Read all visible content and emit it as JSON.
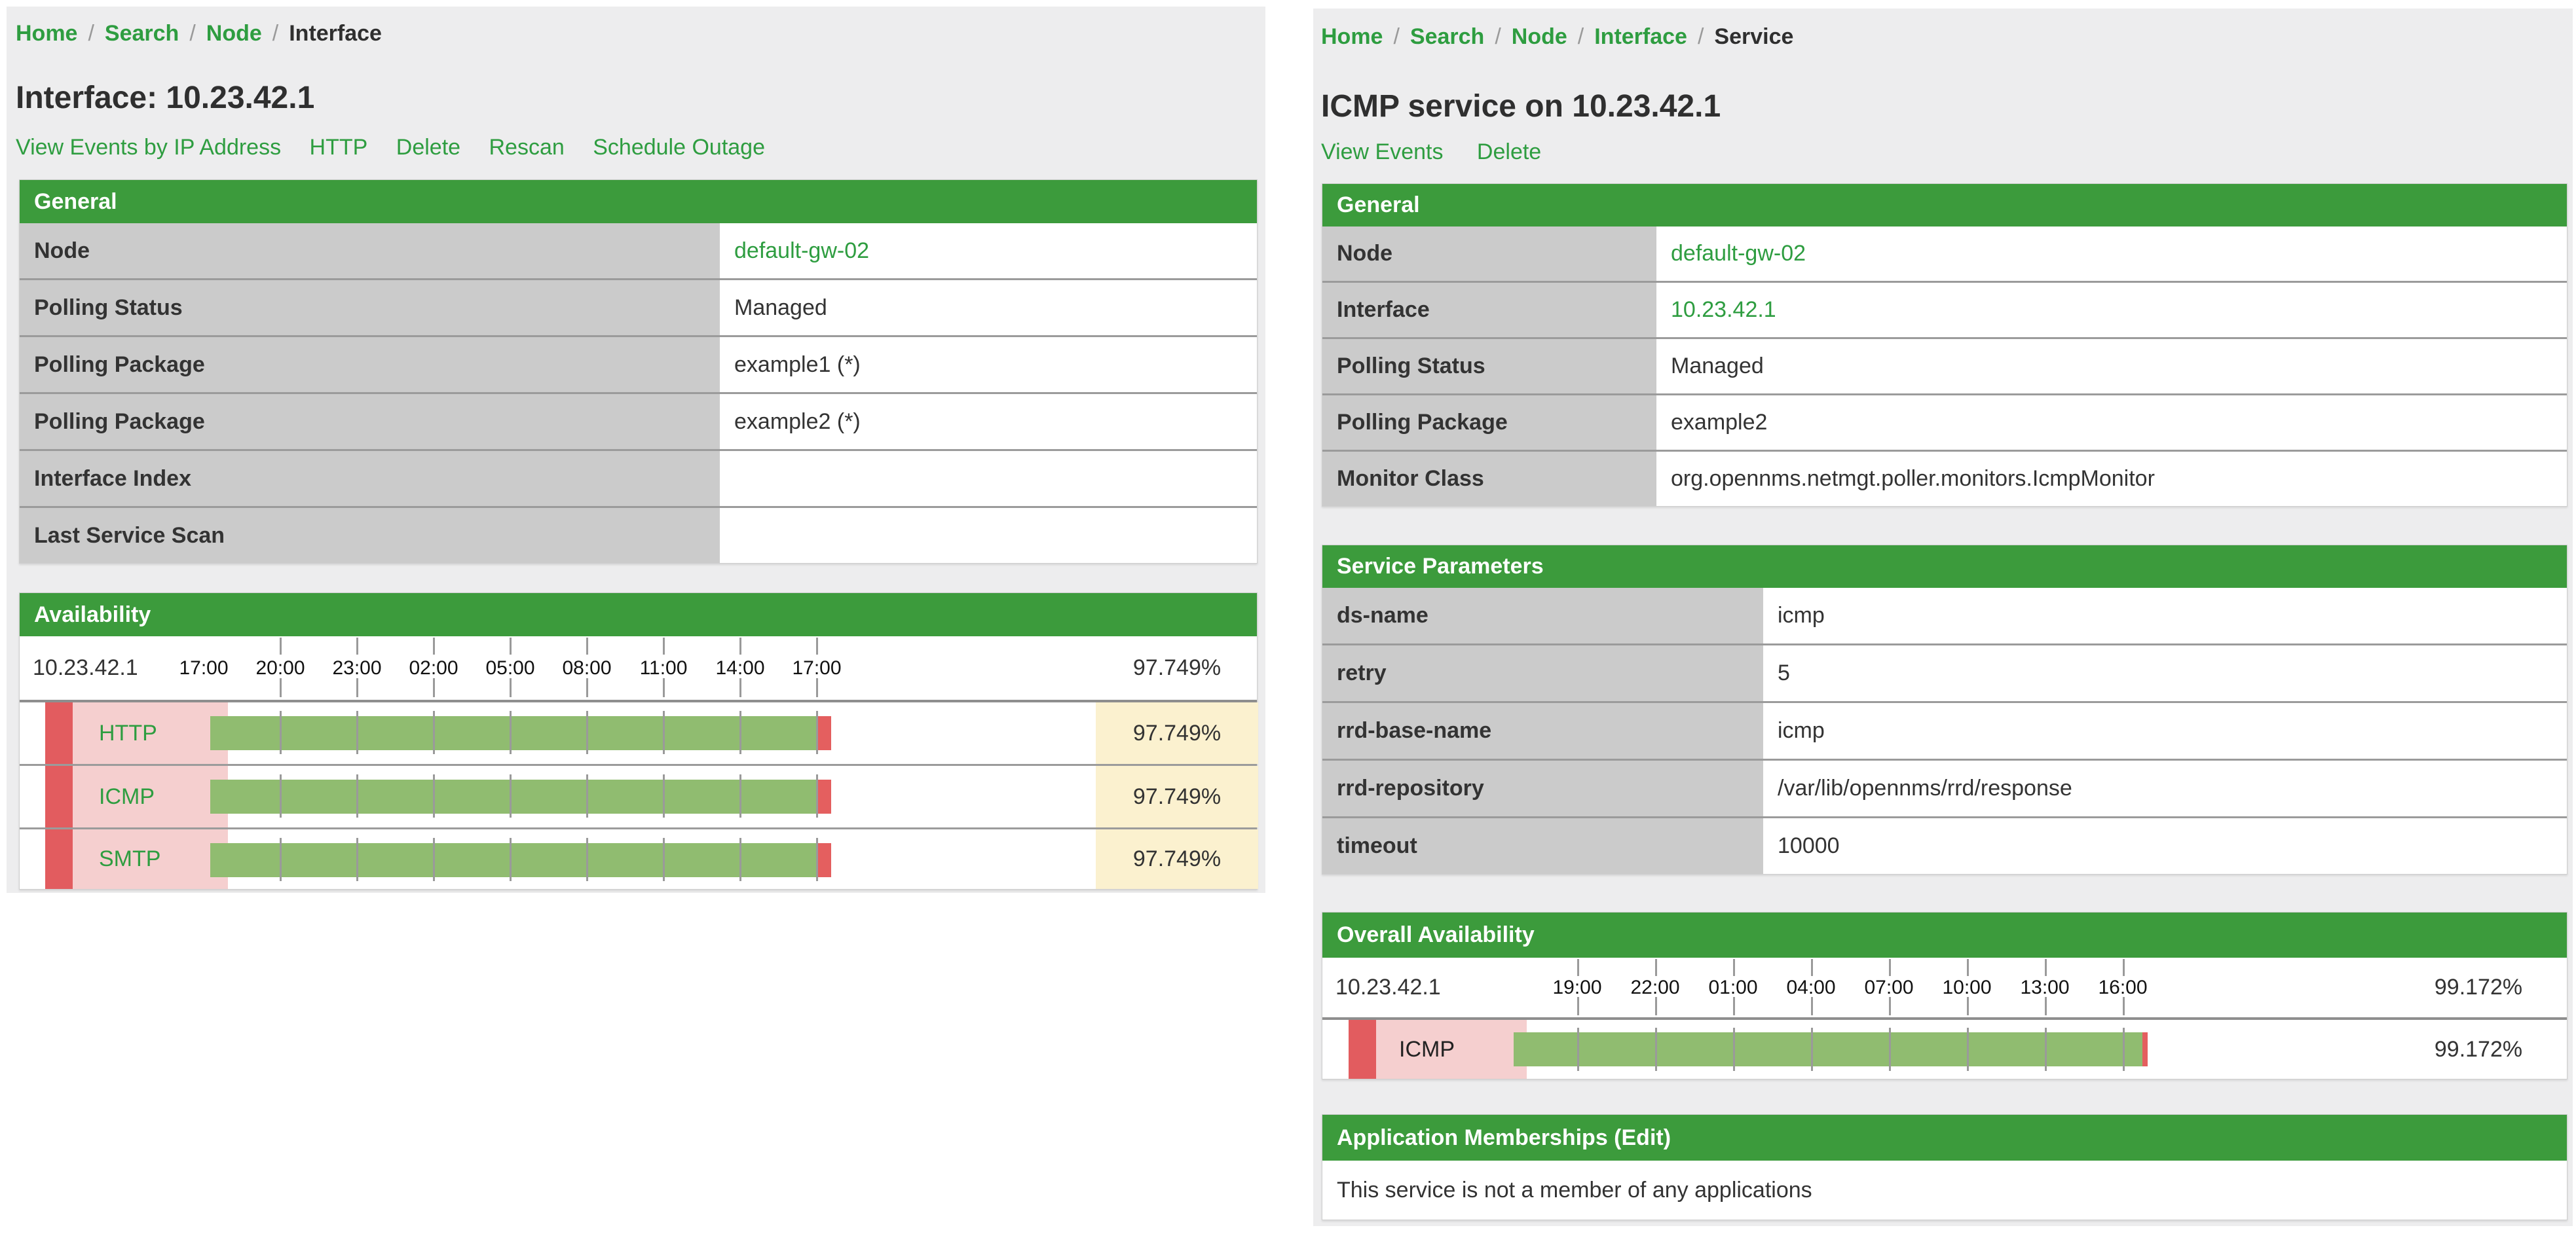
{
  "colors": {
    "header_green": "#3c9b3c",
    "link_green": "#2e9d40",
    "label_gray": "#cbcbcb",
    "row_border_gray": "#9b9b9b",
    "bar_green": "#90bc70",
    "bar_red": "#e45f5f",
    "strip_red": "#e25c5f",
    "pink": "#f5cfcf",
    "yellow": "#fbf1cf",
    "panel_gray": "#ededee"
  },
  "left": {
    "breadcrumb": {
      "items": [
        "Home",
        "Search",
        "Node"
      ],
      "current": "Interface",
      "separator": "/"
    },
    "title": "Interface: 10.23.42.1",
    "actions": [
      "View Events by IP Address",
      "HTTP",
      "Delete",
      "Rescan",
      "Schedule Outage"
    ],
    "general": {
      "header": "General",
      "rows": [
        {
          "label": "Node",
          "value": "default-gw-02"
        },
        {
          "label": "Polling Status",
          "value": "Managed"
        },
        {
          "label": "Polling Package",
          "value": "example1 (*)"
        },
        {
          "label": "Polling Package",
          "value": "example2 (*)"
        },
        {
          "label": "Interface Index",
          "value": ""
        },
        {
          "label": "Last Service Scan",
          "value": ""
        }
      ]
    },
    "availability": {
      "header": "Availability",
      "ip": "10.23.42.1",
      "overall": "97.749%",
      "axis_labels": [
        "17:00",
        "20:00",
        "23:00",
        "02:00",
        "05:00",
        "08:00",
        "11:00",
        "14:00",
        "17:00"
      ],
      "services": [
        {
          "name": "HTTP",
          "value": "97.749%",
          "pct": 97.749
        },
        {
          "name": "ICMP",
          "value": "97.749%",
          "pct": 97.749
        },
        {
          "name": "SMTP",
          "value": "97.749%",
          "pct": 97.749
        }
      ]
    }
  },
  "right": {
    "breadcrumb": {
      "items": [
        "Home",
        "Search",
        "Node",
        "Interface"
      ],
      "current": "Service",
      "separator": "/"
    },
    "title": "ICMP service on 10.23.42.1",
    "actions": [
      "View Events",
      "Delete"
    ],
    "general": {
      "header": "General",
      "rows": [
        {
          "label": "Node",
          "value": "default-gw-02"
        },
        {
          "label": "Interface",
          "value": "10.23.42.1"
        },
        {
          "label": "Polling Status",
          "value": "Managed"
        },
        {
          "label": "Polling Package",
          "value": "example2"
        },
        {
          "label": "Monitor Class",
          "value": "org.opennms.netmgt.poller.monitors.IcmpMonitor"
        }
      ]
    },
    "service_parameters": {
      "header": "Service Parameters",
      "rows": [
        {
          "label": "ds-name",
          "value": "icmp"
        },
        {
          "label": "retry",
          "value": "5"
        },
        {
          "label": "rrd-base-name",
          "value": "icmp"
        },
        {
          "label": "rrd-repository",
          "value": "/var/lib/opennms/rrd/response"
        },
        {
          "label": "timeout",
          "value": "10000"
        }
      ]
    },
    "overall_availability": {
      "header": "Overall Availability",
      "ip": "10.23.42.1",
      "overall": "99.172%",
      "axis_labels": [
        "19:00",
        "22:00",
        "01:00",
        "04:00",
        "07:00",
        "10:00",
        "13:00",
        "16:00"
      ],
      "services": [
        {
          "name": "ICMP",
          "value": "99.172%",
          "pct": 99.172
        }
      ]
    },
    "app_memberships": {
      "header": "Application Memberships (Edit)",
      "body": "This service is not a member of any applications"
    }
  }
}
